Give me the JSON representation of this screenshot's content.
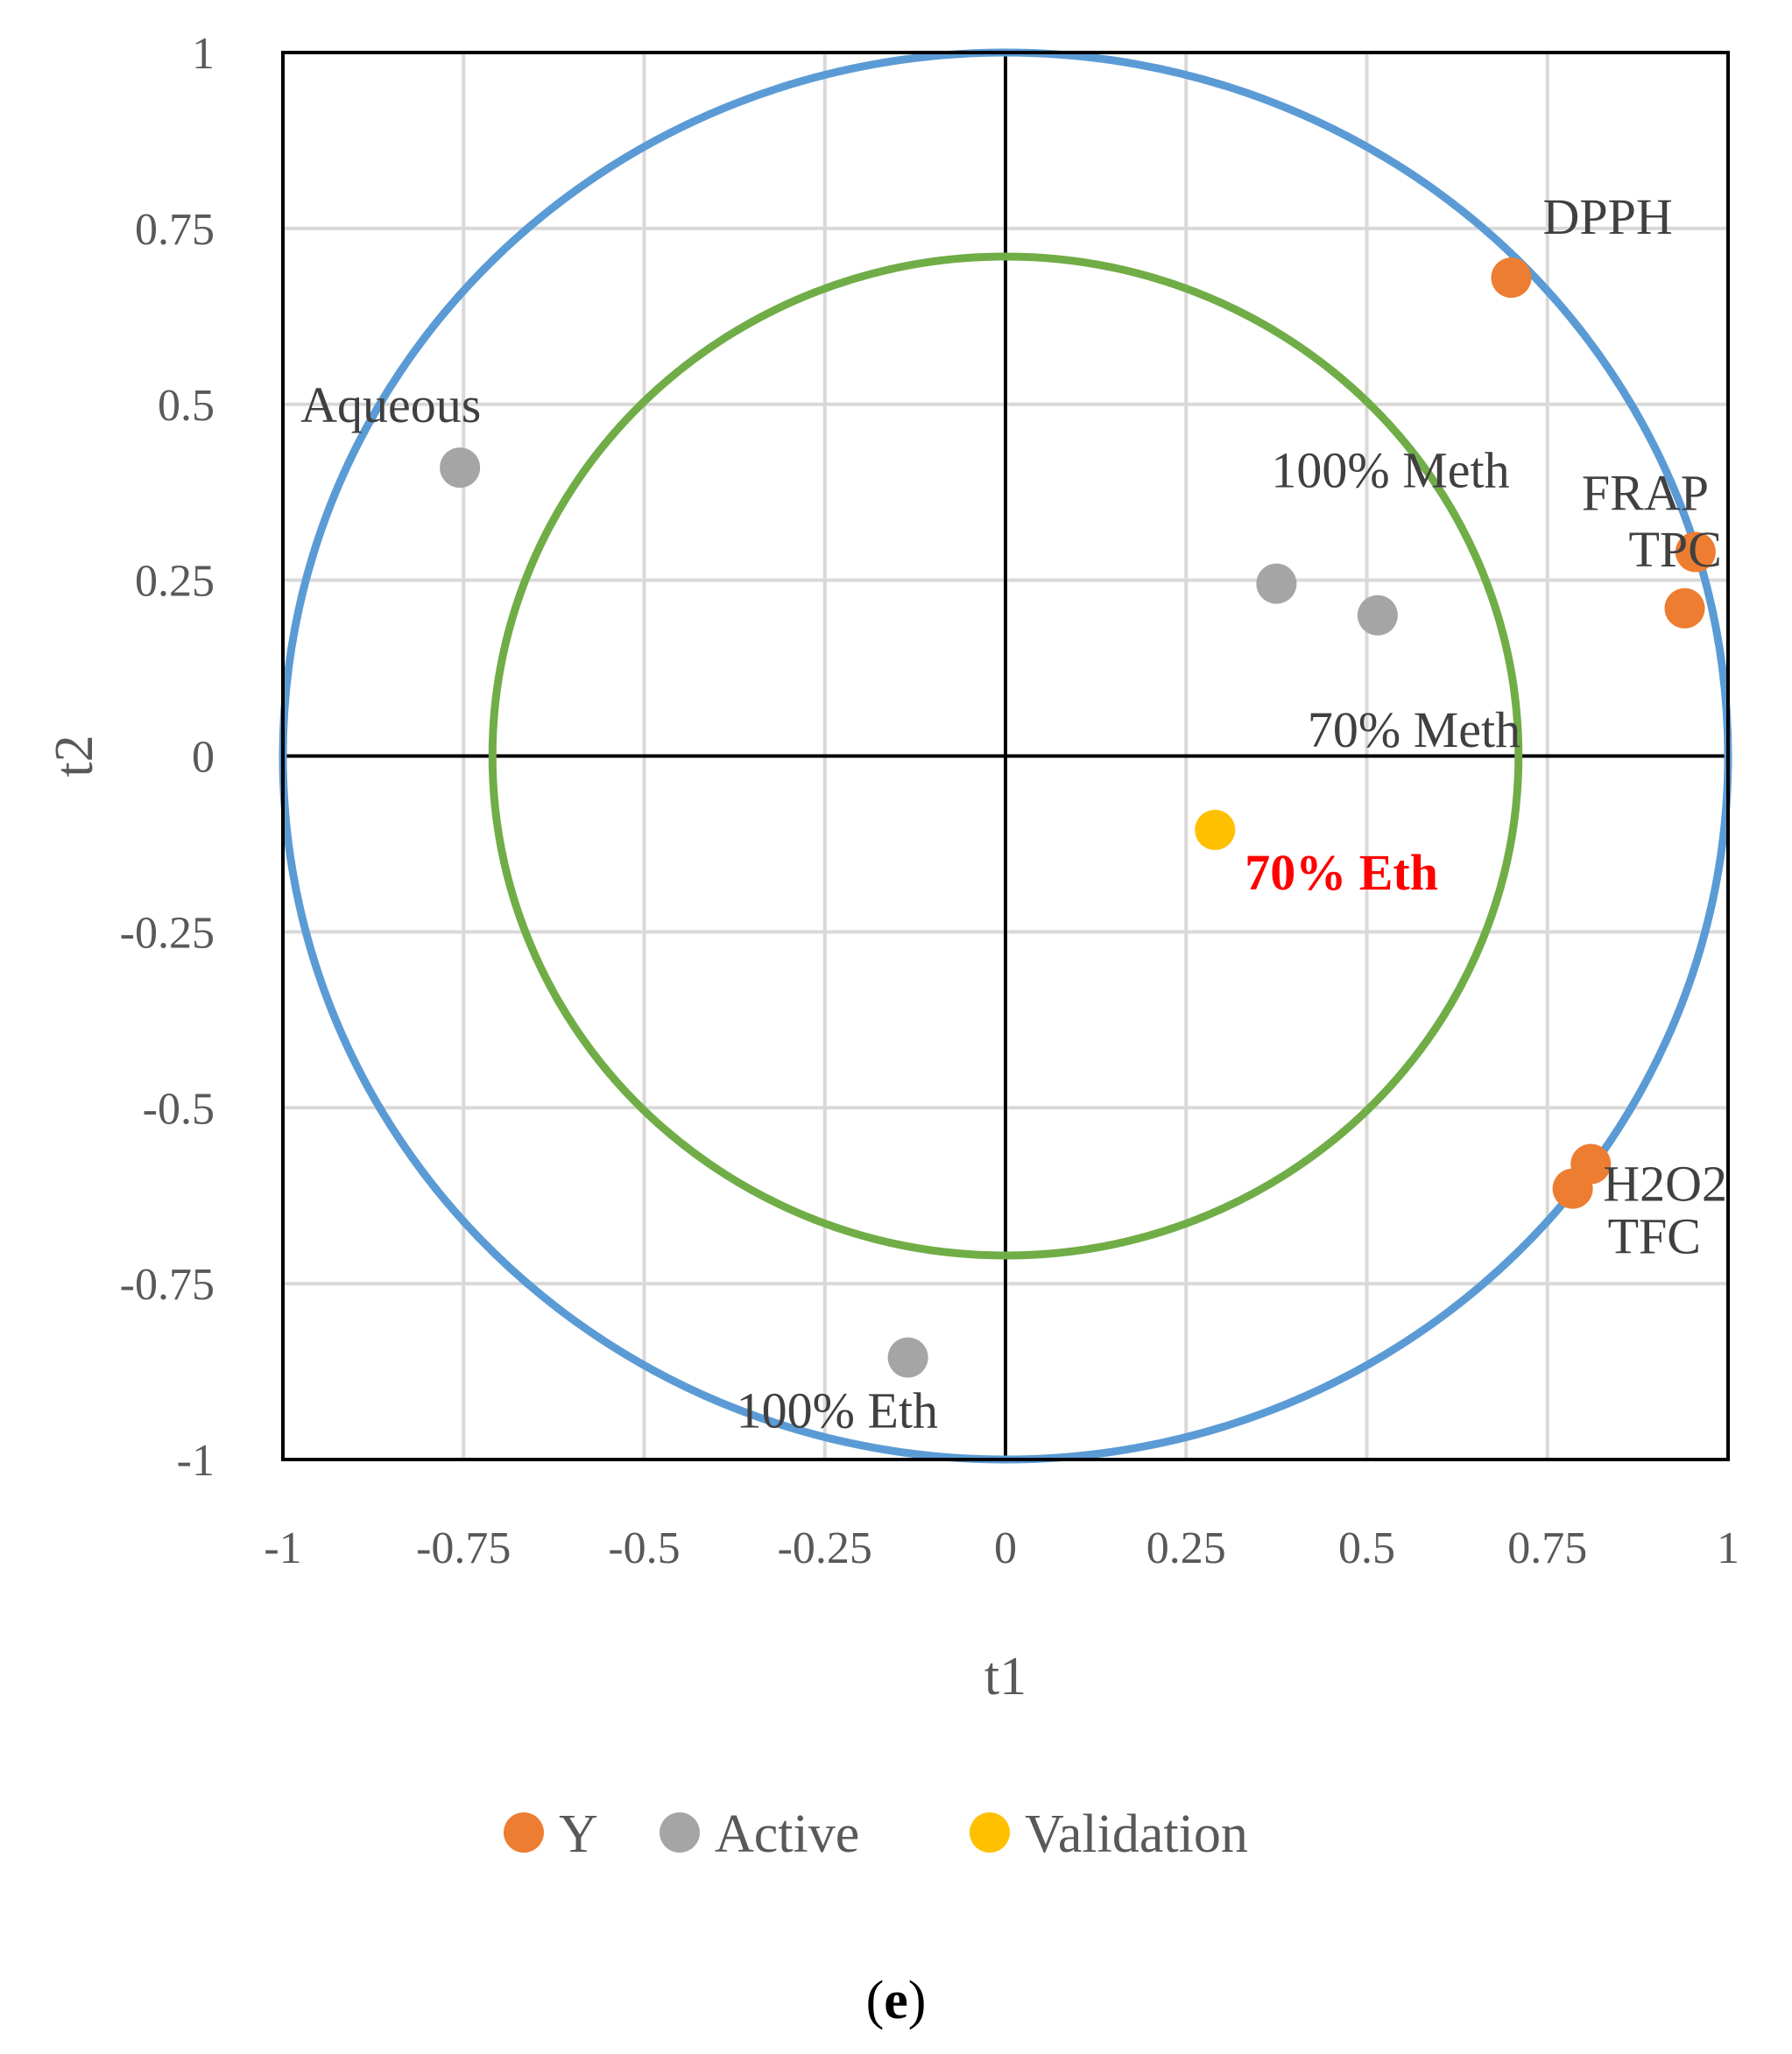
{
  "chart_data": {
    "type": "scatter",
    "xlabel": "t1",
    "ylabel": "t2",
    "xlim": [
      -1,
      1
    ],
    "ylim": [
      -1,
      1
    ],
    "x_ticks": [
      -1,
      -0.75,
      -0.5,
      -0.25,
      0,
      0.25,
      0.5,
      0.75,
      1
    ],
    "y_ticks": [
      -1,
      -0.75,
      -0.5,
      -0.25,
      0,
      0.25,
      0.5,
      0.75,
      1
    ],
    "x_tick_labels": [
      "-1",
      "-0.75",
      "-0.5",
      "-0.25",
      "0",
      "0.25",
      "0.5",
      "0.75",
      "1"
    ],
    "y_tick_labels": [
      "-1",
      "-0.75",
      "-0.5",
      "-0.25",
      "0",
      "0.25",
      "0.5",
      "0.75",
      "1"
    ],
    "grid": true,
    "circles": [
      {
        "name": "outer",
        "radius": 1.0,
        "color": "#5b9bd5"
      },
      {
        "name": "inner",
        "radius": 0.71,
        "color": "#70ad47"
      }
    ],
    "series": [
      {
        "name": "Y",
        "color": "#ed7d31",
        "points": [
          {
            "label": "DPPH",
            "x": 0.7,
            "y": 0.68
          },
          {
            "label": "FRAP",
            "x": 0.955,
            "y": 0.29
          },
          {
            "label": "TPC",
            "x": 0.94,
            "y": 0.21
          },
          {
            "label": "H2O2",
            "x": 0.81,
            "y": -0.58
          },
          {
            "label": "TFC",
            "x": 0.785,
            "y": -0.615
          }
        ]
      },
      {
        "name": "Active",
        "color": "#a5a5a5",
        "points": [
          {
            "label": "Aqueous",
            "x": -0.755,
            "y": 0.41
          },
          {
            "label": "100% Meth",
            "x": 0.375,
            "y": 0.245
          },
          {
            "label": "70% Meth",
            "x": 0.515,
            "y": 0.2
          },
          {
            "label": "100% Eth",
            "x": -0.135,
            "y": -0.855
          }
        ]
      },
      {
        "name": "Validation",
        "color": "#ffc000",
        "points": [
          {
            "label": "70% Eth",
            "x": 0.29,
            "y": -0.105
          }
        ]
      }
    ],
    "legend": [
      "Y",
      "Active",
      "Validation"
    ],
    "legend_position": "bottom"
  },
  "caption": {
    "open": "(",
    "letter": "e",
    "close": ")"
  }
}
